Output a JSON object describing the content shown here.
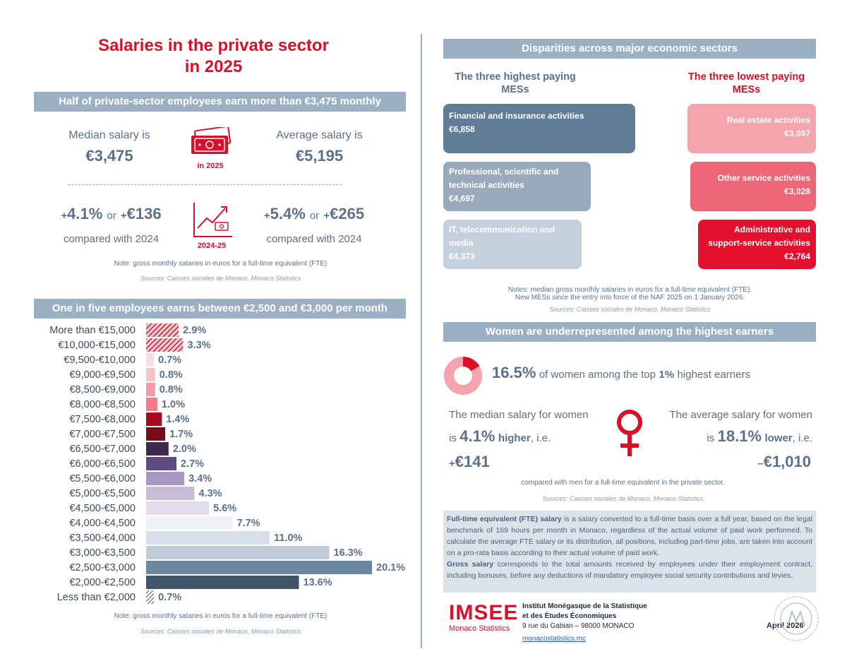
{
  "left": {
    "title_line1": "Salaries in the private sector",
    "title_line2": "in 2025",
    "banner1": "Half of private-sector employees earn more than €3,475 monthly",
    "median_label": "Median salary is",
    "median_value": "€3,475",
    "average_label": "Average salary is",
    "average_value": "€5,195",
    "icon_year": "in 2025",
    "median_change_pct": "4.1%",
    "median_change_amt": "€136",
    "average_change_pct": "5.4%",
    "average_change_amt": "€265",
    "change_or": "or",
    "plus": "+",
    "compared_2024": "compared with 2024",
    "icon_period": "2024-25",
    "note1": "Note: gross monthly salaries in euros for a full-time equivalent (FTE)",
    "sources1": "Sources: Caisses sociales de Monaco, Monaco Statistics",
    "banner2": "One in five employees earns between €2,500 and €3,000 per month",
    "note2": "Note: gross monthly salaries in euros for a full-time equivalent (FTE)",
    "sources2": "Sources: Caisses sociales de Monaco, Monaco Statistics"
  },
  "chart_data": {
    "type": "bar",
    "orientation": "horizontal",
    "categories": [
      "More than €15,000",
      "€10,000-€15,000",
      "€9,500-€10,000",
      "€9,000-€9,500",
      "€8,500-€9,000",
      "€8,000-€8,500",
      "€7,500-€8,000",
      "€7,000-€7,500",
      "€6,500-€7,000",
      "€6,000-€6,500",
      "€5,500-€6,000",
      "€5,000-€5,500",
      "€4,500-€5,000",
      "€4,000-€4,500",
      "€3,500-€4,000",
      "€3,000-€3,500",
      "€2,500-€3,000",
      "€2,000-€2,500",
      "Less than €2,000"
    ],
    "values": [
      2.9,
      3.3,
      0.7,
      0.8,
      0.8,
      1.0,
      1.4,
      1.7,
      2.0,
      2.7,
      3.4,
      4.3,
      5.6,
      7.7,
      11.0,
      16.3,
      20.1,
      13.6,
      0.7
    ],
    "labels": [
      "2.9%",
      "3.3%",
      "0.7%",
      "0.8%",
      "0.8%",
      "1.0%",
      "1.4%",
      "1.7%",
      "2.0%",
      "2.7%",
      "3.4%",
      "4.3%",
      "5.6%",
      "7.7%",
      "11.0%",
      "16.3%",
      "20.1%",
      "13.6%",
      "0.7%"
    ],
    "colors": [
      "hatch",
      "hatch",
      "#f9dde0",
      "#f6c3c9",
      "#f49aa6",
      "#f27b8a",
      "#a8081e",
      "#7a0a1c",
      "#3e2a4a",
      "#5e4a7e",
      "#a898c4",
      "#c8bcd9",
      "#e1dbeb",
      "#eef1f5",
      "#d6dfe7",
      "#bfccd8",
      "#6a879f",
      "#3f5569",
      "hatch-slate"
    ],
    "unit": "%"
  },
  "right": {
    "banner3": "Disparities across major economic sectors",
    "highest_head": "The three highest paying MESs",
    "lowest_head": "The three lowest paying MESs",
    "highest": [
      {
        "name": "Financial and insurance activities",
        "value": "€6,858",
        "color": "#607c96"
      },
      {
        "name": "Professional, scientific and technical activities",
        "value": "€4,697",
        "color": "#98aabc"
      },
      {
        "name": "IT, telecommunication and media",
        "value": "€4,373",
        "color": "#c4d0db"
      }
    ],
    "lowest": [
      {
        "name": "Real estate activities",
        "value": "€3,097",
        "color": "#f4a4ad"
      },
      {
        "name": "Other service activities",
        "value": "€3,028",
        "color": "#ec6677"
      },
      {
        "name": "Administrative and support-service activities",
        "value": "€2,764",
        "color": "#e5102d"
      }
    ],
    "note3_line1": "Notes: median gross monthly salaries in euros for a full-time equivalent (FTE).",
    "note3_line2": "New MESs since the entry into force of the NAF 2025 on 1 January 2026.",
    "sources3": "Sources: Caisses sociales de Monaco, Monaco Statistics",
    "banner4": "Women are underrepresented among the highest earners",
    "women_top_pct": "16.5%",
    "women_top_pct_value": 16.5,
    "women_top_text_a": "of women among the top",
    "women_top_share": "1%",
    "women_top_text_b": "highest earners",
    "median_women_label": "The median salary for women",
    "median_women_is": "is",
    "median_women_pct": "4.1%",
    "median_women_dir": "higher",
    "median_women_ie": ", i.e.",
    "median_women_sign": "+",
    "median_women_amt": "€141",
    "average_women_label": "The average salary for women",
    "average_women_is": "is",
    "average_women_pct": "18.1%",
    "average_women_dir": "lower",
    "average_women_ie": ", i.e.",
    "average_women_sign": "–",
    "average_women_amt": "€1,010",
    "compared_men": "compared with men for a full-time equivalent in the private sector.",
    "sources4": "Sources: Caisses sociales de Monaco, Monaco Statistics",
    "def_fte_term": "Full-time equivalent (FTE) salary",
    "def_fte_text": " is a salary converted to a full-time basis over a full year, based on the legal benchmark of 169 hours per month in Monaco, regardless of the actual volume of paid work performed. To calculate the average FTE salary or its distribution, all positions, including part-time jobs, are taken into account on a pro-rata basis according to their actual volume of paid work.",
    "def_gross_term": "Gross salary",
    "def_gross_text": " corresponds to the total amounts received by employees under their employment contract, including bonuses, before any deductions of mandatory employee social security contributions and levies.",
    "logo_text": "IMSEE",
    "logo_sub": "Monaco Statistics",
    "inst_line1": "Institut Monégasque de la Statistique",
    "inst_line2": "et des Études Économiques",
    "address": "9 rue du Gabian – 98000 MONACO",
    "website": "monacostatistics.mc",
    "date": "April 2026"
  }
}
